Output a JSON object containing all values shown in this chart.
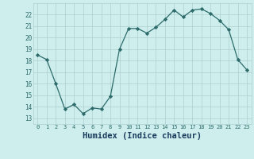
{
  "x": [
    0,
    1,
    2,
    3,
    4,
    5,
    6,
    7,
    8,
    9,
    10,
    11,
    12,
    13,
    14,
    15,
    16,
    17,
    18,
    19,
    20,
    21,
    22,
    23
  ],
  "y": [
    18.5,
    18.1,
    16.0,
    13.8,
    14.2,
    13.4,
    13.9,
    13.8,
    14.9,
    19.0,
    20.8,
    20.8,
    20.4,
    20.9,
    21.6,
    22.4,
    21.8,
    22.4,
    22.5,
    22.1,
    21.5,
    20.7,
    18.1,
    17.2
  ],
  "line_color": "#2d6b6b",
  "marker": "D",
  "marker_size": 2.2,
  "bg_color": "#cdeeed",
  "grid_color": "#b0cece",
  "xlabel": "Humidex (Indice chaleur)",
  "xlabel_color": "#1a3a5c",
  "xlabel_fontsize": 7.5,
  "ytick_min": 13,
  "ytick_max": 22,
  "xtick_labels": [
    "0",
    "1",
    "2",
    "3",
    "4",
    "5",
    "6",
    "7",
    "8",
    "9",
    "10",
    "11",
    "12",
    "13",
    "14",
    "15",
    "16",
    "17",
    "18",
    "19",
    "20",
    "21",
    "22",
    "23"
  ],
  "ylim": [
    12.5,
    23.0
  ],
  "xlim": [
    -0.5,
    23.5
  ]
}
